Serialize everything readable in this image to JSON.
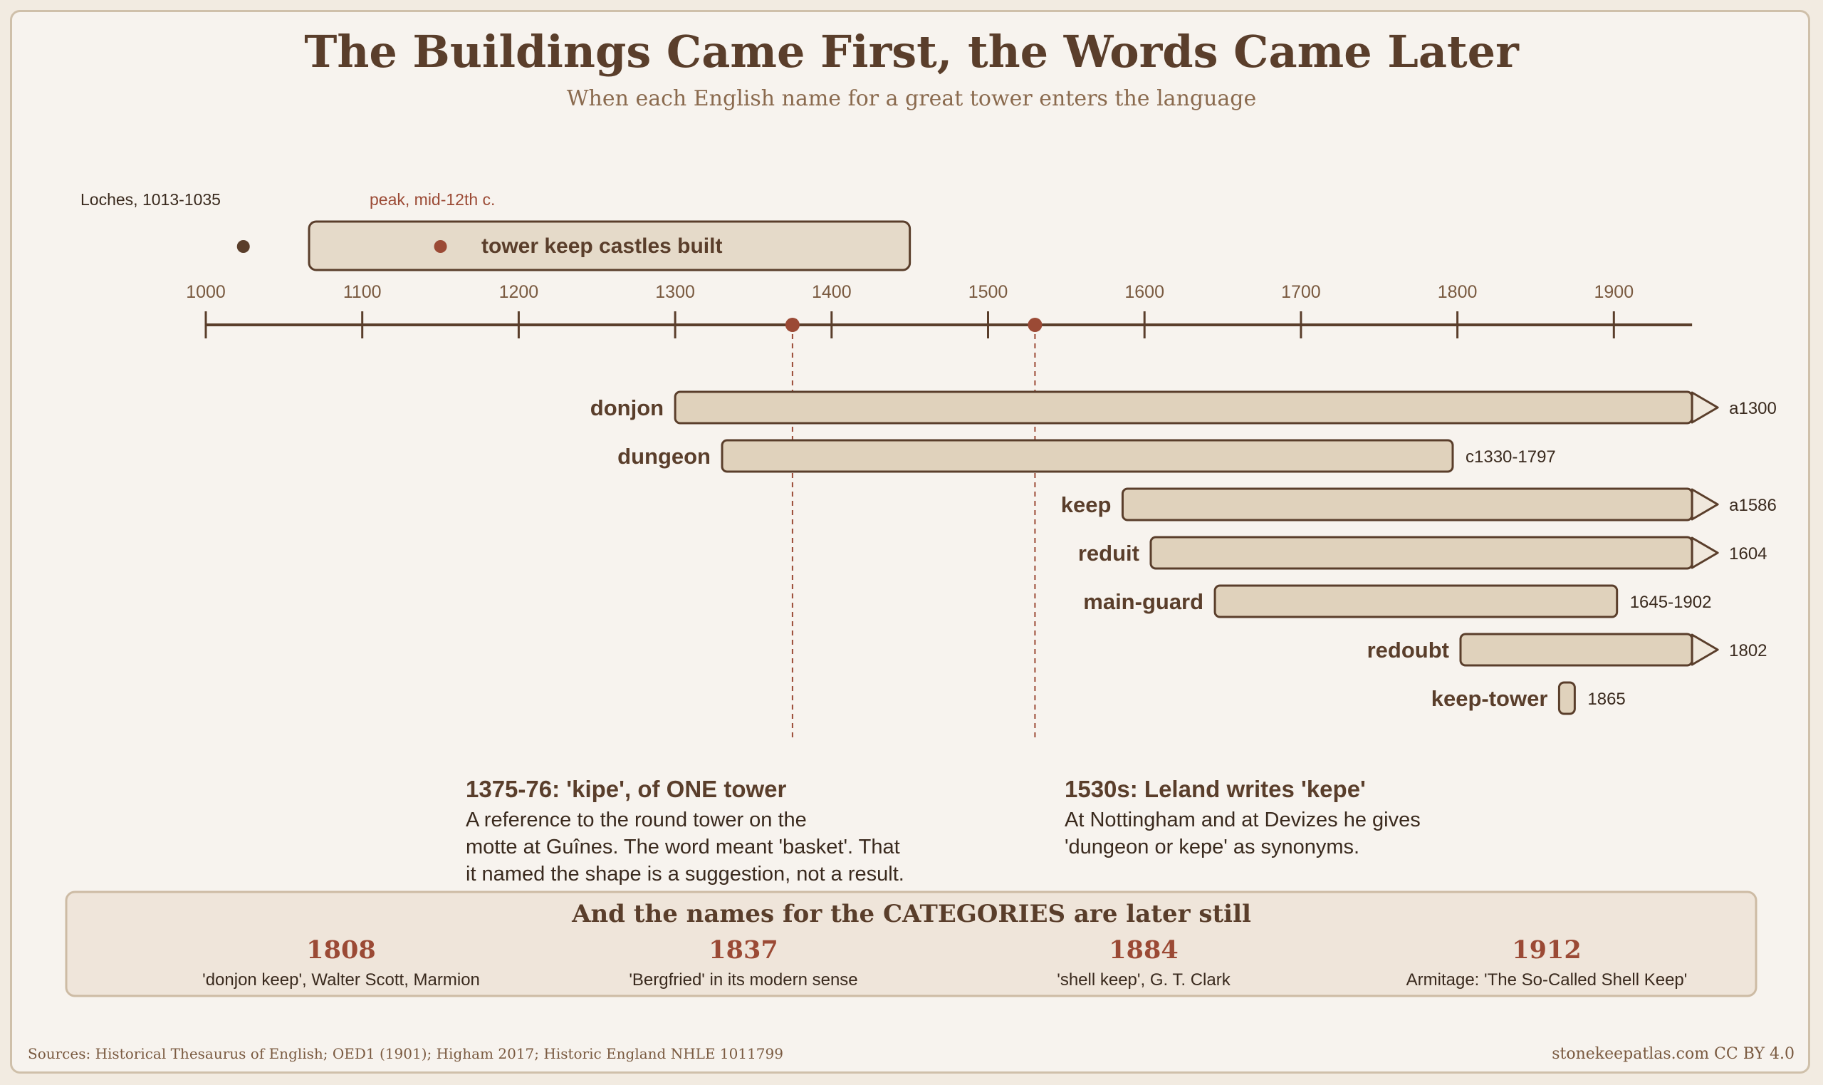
{
  "title": "The Buildings Came First, the Words Came Later",
  "subtitle": "When each English name for a great tower enters the language",
  "colors": {
    "ink": "#5a3e2b",
    "accent": "#9b4a35",
    "bar_fill": "#e0d2bc",
    "panel_fill": "#efe5da",
    "panel_border": "#cdbba4",
    "background": "#f7f3ee"
  },
  "chart_data": {
    "type": "timeline",
    "x_ticks": [
      1000,
      1100,
      1200,
      1300,
      1400,
      1500,
      1600,
      1700,
      1800,
      1900
    ],
    "xlim": [
      1000,
      1950
    ],
    "building_period": {
      "label": "tower keep castles built",
      "start": 1066,
      "end": 1450,
      "early_example": {
        "label": "Loches, 1013-1035",
        "year": 1024
      },
      "peak": {
        "label": "peak, mid-12th c.",
        "year": 1150
      }
    },
    "terms": [
      {
        "name": "donjon",
        "start": 1300,
        "end": 1950,
        "ongoing": true,
        "label": "a1300"
      },
      {
        "name": "dungeon",
        "start": 1330,
        "end": 1797,
        "ongoing": false,
        "label": "c1330-1797"
      },
      {
        "name": "keep",
        "start": 1586,
        "end": 1950,
        "ongoing": true,
        "label": "a1586"
      },
      {
        "name": "reduit",
        "start": 1604,
        "end": 1950,
        "ongoing": true,
        "label": "1604"
      },
      {
        "name": "main-guard",
        "start": 1645,
        "end": 1902,
        "ongoing": false,
        "label": "1645-1902"
      },
      {
        "name": "redoubt",
        "start": 1802,
        "end": 1950,
        "ongoing": true,
        "label": "1802"
      },
      {
        "name": "keep-tower",
        "start": 1865,
        "end": 1875,
        "ongoing": false,
        "label": "1865"
      }
    ],
    "markers": [
      {
        "year": 1375
      },
      {
        "year": 1530
      }
    ]
  },
  "annotations": [
    {
      "heading": "1375-76: 'kipe', of ONE tower",
      "lines": [
        "A reference to the round tower on the",
        "motte at Guînes. The word meant 'basket'. That",
        "it named the shape is a suggestion, not a result."
      ]
    },
    {
      "heading": "1530s: Leland writes 'kepe'",
      "lines": [
        "At Nottingham and at Devizes he gives",
        "'dungeon or kepe' as synonyms."
      ]
    }
  ],
  "categories_panel": {
    "title": "And the names for the CATEGORIES are later still",
    "items": [
      {
        "year": "1808",
        "text": "'donjon keep', Walter Scott, Marmion"
      },
      {
        "year": "1837",
        "text": "'Bergfried' in its modern sense"
      },
      {
        "year": "1884",
        "text": "'shell keep', G. T. Clark"
      },
      {
        "year": "1912",
        "text": "Armitage: 'The So-Called Shell Keep'"
      }
    ]
  },
  "footer": {
    "sources": "Sources: Historical Thesaurus of English; OED1 (1901); Higham 2017; Historic England NHLE 1011799",
    "credit": "stonekeepatlas.com CC BY 4.0"
  }
}
